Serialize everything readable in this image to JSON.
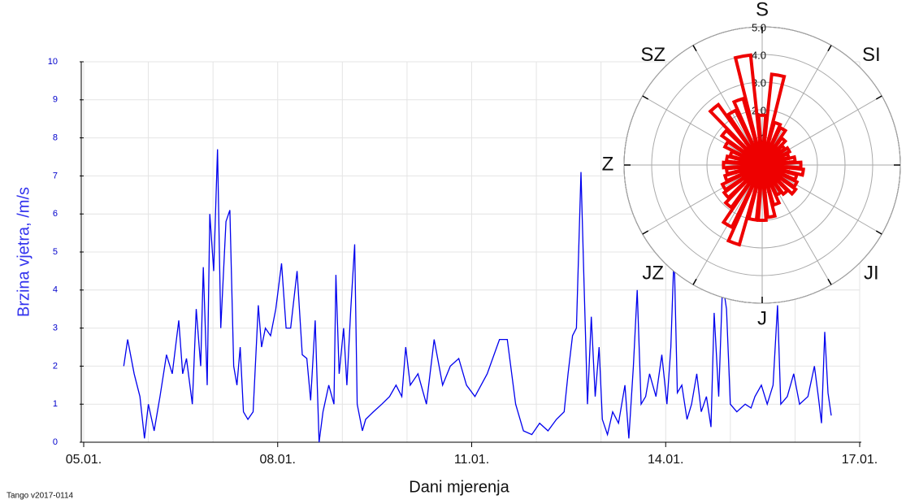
{
  "chart_data": [
    {
      "type": "line",
      "y_label": "Brzina vjetra, /m/s",
      "x_label": "Dani mjerenja",
      "footer": "Tango v2017-0114",
      "xlim": [
        5,
        17
      ],
      "ylim": [
        0,
        10
      ],
      "xticks": [
        {
          "value": 5,
          "label": "05.01."
        },
        {
          "value": 8,
          "label": "08.01."
        },
        {
          "value": 11,
          "label": "11.01."
        },
        {
          "value": 14,
          "label": "14.01."
        },
        {
          "value": 17,
          "label": "17.01."
        }
      ],
      "yticks": [
        0,
        1,
        2,
        3,
        4,
        5,
        6,
        7,
        8,
        9,
        10
      ],
      "grid": true,
      "series": [
        {
          "name": "Brzina vjetra",
          "color": "#0000ee",
          "x": [
            5.62,
            5.68,
            5.78,
            5.87,
            5.94,
            6.0,
            6.09,
            6.18,
            6.28,
            6.37,
            6.47,
            6.53,
            6.59,
            6.68,
            6.74,
            6.81,
            6.85,
            6.91,
            6.95,
            7.01,
            7.07,
            7.12,
            7.2,
            7.26,
            7.32,
            7.37,
            7.42,
            7.47,
            7.54,
            7.62,
            7.7,
            7.75,
            7.81,
            7.89,
            7.97,
            8.06,
            8.13,
            8.2,
            8.3,
            8.38,
            8.45,
            8.51,
            8.58,
            8.64,
            8.7,
            8.79,
            8.87,
            8.9,
            8.95,
            9.02,
            9.07,
            9.13,
            9.19,
            9.23,
            9.31,
            9.36,
            9.48,
            9.61,
            9.73,
            9.83,
            9.92,
            9.98,
            10.05,
            10.17,
            10.3,
            10.42,
            10.55,
            10.67,
            10.8,
            10.92,
            11.05,
            11.24,
            11.43,
            11.55,
            11.68,
            11.8,
            11.93,
            12.05,
            12.18,
            12.31,
            12.43,
            12.49,
            12.56,
            12.62,
            12.69,
            12.74,
            12.79,
            12.85,
            12.91,
            12.97,
            13.02,
            13.1,
            13.18,
            13.27,
            13.37,
            13.43,
            13.5,
            13.56,
            13.62,
            13.69,
            13.75,
            13.85,
            13.94,
            14.02,
            14.08,
            14.13,
            14.18,
            14.25,
            14.33,
            14.4,
            14.48,
            14.55,
            14.63,
            14.7,
            14.75,
            14.82,
            14.88,
            14.94,
            15.0,
            15.1,
            15.23,
            15.32,
            15.38,
            15.48,
            15.57,
            15.66,
            15.73,
            15.78,
            15.88,
            15.98,
            16.07,
            16.2,
            16.3,
            16.36,
            16.41,
            16.46,
            16.51,
            16.56
          ],
          "values": [
            2.0,
            2.7,
            1.8,
            1.2,
            0.1,
            1.0,
            0.3,
            1.2,
            2.3,
            1.8,
            3.2,
            1.8,
            2.2,
            1.0,
            3.5,
            2.0,
            4.6,
            1.5,
            6.0,
            4.5,
            7.7,
            3.0,
            5.8,
            6.1,
            2.0,
            1.5,
            2.5,
            0.8,
            0.6,
            0.8,
            3.6,
            2.5,
            3.0,
            2.8,
            3.5,
            4.7,
            3.0,
            3.0,
            4.5,
            2.3,
            2.2,
            1.1,
            3.2,
            0.0,
            0.8,
            1.5,
            1.0,
            4.4,
            1.8,
            3.0,
            1.5,
            3.5,
            5.2,
            1.0,
            0.3,
            0.6,
            0.8,
            1.0,
            1.2,
            1.5,
            1.2,
            2.5,
            1.5,
            1.8,
            1.0,
            2.7,
            1.5,
            2.0,
            2.2,
            1.5,
            1.2,
            1.8,
            2.7,
            2.7,
            1.0,
            0.3,
            0.2,
            0.5,
            0.3,
            0.6,
            0.8,
            1.8,
            2.8,
            3.0,
            7.1,
            4.0,
            1.0,
            3.3,
            1.2,
            2.5,
            0.6,
            0.2,
            0.8,
            0.5,
            1.5,
            0.1,
            2.0,
            4.0,
            1.0,
            1.2,
            1.8,
            1.2,
            2.3,
            1.0,
            2.5,
            5.0,
            1.3,
            1.5,
            0.6,
            1.0,
            1.8,
            0.8,
            1.2,
            0.4,
            3.4,
            1.2,
            4.2,
            3.5,
            1.0,
            0.8,
            1.0,
            0.9,
            1.2,
            1.5,
            1.0,
            1.5,
            3.6,
            1.0,
            1.2,
            1.8,
            1.0,
            1.2,
            2.0,
            1.2,
            0.5,
            2.9,
            1.3,
            0.7
          ]
        }
      ]
    },
    {
      "type": "polar",
      "directions": [
        "S",
        "SI",
        "JI",
        "J",
        "JZ",
        "Z",
        "SZ"
      ],
      "rlim": [
        0,
        5
      ],
      "rticks": [
        {
          "value": 1,
          "label": "1.0"
        },
        {
          "value": 2,
          "label": "2.0"
        },
        {
          "value": 3,
          "label": "3.0"
        },
        {
          "value": 4,
          "label": "4.0"
        },
        {
          "value": 5,
          "label": "5.0"
        }
      ],
      "color": "#ee0000",
      "values": [
        1.8,
        3.3,
        1.6,
        1.5,
        1.2,
        1.0,
        1.1,
        1.0,
        1.2,
        1.4,
        1.5,
        1.3,
        1.4,
        1.5,
        1.3,
        1.2,
        1.5,
        1.9,
        2.0,
        2.0,
        3.0,
        2.5,
        1.9,
        1.7,
        1.6,
        1.4,
        1.3,
        1.4,
        1.3,
        1.2,
        1.5,
        1.8,
        2.7,
        2.2,
        2.5,
        4.0
      ]
    }
  ]
}
